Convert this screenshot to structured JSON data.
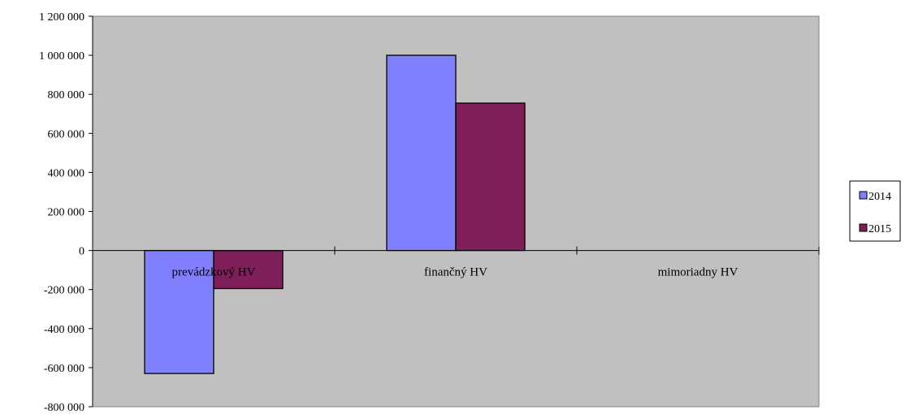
{
  "chart_data": {
    "type": "bar",
    "title": "",
    "xlabel": "",
    "ylabel": "",
    "categories": [
      "prevádzkový HV",
      "finančný HV",
      "mimoriadny HV"
    ],
    "series": [
      {
        "name": "2014",
        "values": [
          -630000,
          1000000,
          0
        ],
        "color": "#8080ff"
      },
      {
        "name": "2015",
        "values": [
          -195000,
          755000,
          0
        ],
        "color": "#7f1f5a"
      }
    ],
    "ylim": [
      -800000,
      1200000
    ],
    "yticks": [
      1200000,
      1000000,
      800000,
      600000,
      400000,
      200000,
      0,
      -200000,
      -400000,
      -600000,
      -800000
    ],
    "ytick_labels": [
      "1 200 000",
      "1 000 000",
      "800 000",
      "600 000",
      "400 000",
      "200 000",
      "0",
      "-200 000",
      "-400 000",
      "-600 000",
      "-800 000"
    ],
    "grid": false,
    "plot_background": "#c0c0c0",
    "legend_position": "right"
  }
}
